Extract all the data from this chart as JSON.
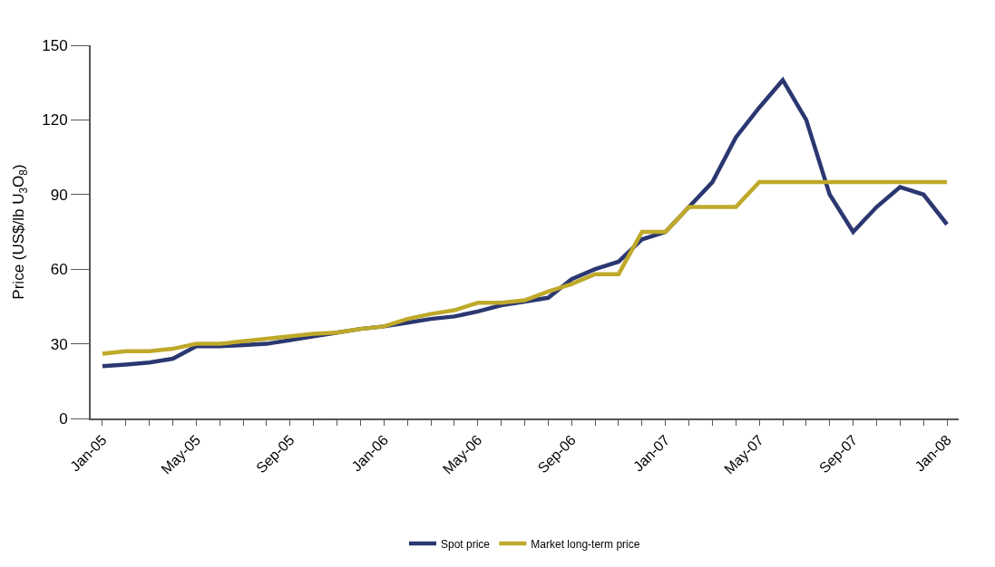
{
  "chart_data": {
    "type": "line",
    "ylabel": "Price (US$/lb U$_{3}$O$_{8}$)",
    "categories": [
      "Jan-05",
      null,
      null,
      null,
      "May-05",
      null,
      null,
      null,
      "Sep-05",
      null,
      null,
      null,
      "Jan-06",
      null,
      null,
      null,
      "May-06",
      null,
      null,
      null,
      "Sep-06",
      null,
      null,
      null,
      "Jan-07",
      null,
      null,
      null,
      "May-07",
      null,
      null,
      null,
      "Sep-07",
      null,
      null,
      null,
      "Jan-08"
    ],
    "series": [
      {
        "name": "Spot price",
        "color": "#2b3770",
        "values": [
          21,
          21.7,
          22.5,
          24,
          29,
          29,
          29.5,
          30,
          31.5,
          33,
          34.5,
          36,
          37,
          38.5,
          40,
          41,
          43,
          45.5,
          47,
          48.5,
          56,
          60,
          63,
          72,
          75,
          85,
          95,
          113,
          125,
          136,
          120,
          90,
          75,
          85,
          93,
          90,
          78
        ]
      },
      {
        "name": "Market long-term price",
        "color": "#bfa92a",
        "values": [
          26,
          27,
          27,
          28,
          30,
          30,
          31,
          32,
          33,
          34,
          34.5,
          36,
          37,
          40,
          42,
          43.5,
          46.5,
          46.5,
          47.5,
          51,
          54,
          58,
          58,
          75,
          75,
          85,
          85,
          85,
          95,
          95,
          95,
          95,
          95,
          95,
          95,
          95,
          95
        ]
      }
    ],
    "ylim": [
      0,
      150
    ],
    "yticks": [
      0,
      30,
      60,
      90,
      120,
      150
    ],
    "legend": "bottom",
    "marker": "none",
    "line_style": "solid"
  }
}
